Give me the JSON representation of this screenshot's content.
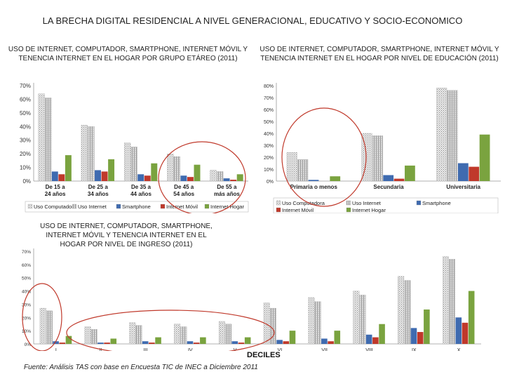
{
  "page_title": "LA BRECHA DIGITAL RESIDENCIAL A NIVEL GENERACIONAL, EDUCATIVO Y SOCIO-ECONOMICO",
  "source": "Fuente: Análisis TAS con base en Encuesta TIC de INEC a Diciembre 2011",
  "colors": {
    "computadora": "#d9d9d9",
    "internet": "#c8c8c8",
    "smartphone": "#3f6bb0",
    "internet_movil": "#c0392b",
    "internet_hogar": "#7aa33f",
    "highlight_circle": "#c0392b"
  },
  "chart_data": [
    {
      "id": "age",
      "type": "bar",
      "title": "USO DE INTERNET, COMPUTADOR, SMARTPHONE, INTERNET MÓVIL Y TENENCIA INTERNET EN EL HOGAR POR GRUPO ETÁREO (2011)",
      "categories": [
        "De 15 a 24 años",
        "De 25 a 34 años",
        "De 35 a 44 años",
        "De 45 a 54 años",
        "De 55 a más años"
      ],
      "yticks": [
        "0%",
        "10%",
        "20%",
        "30%",
        "40%",
        "50%",
        "60%",
        "70%"
      ],
      "ylim": [
        0,
        70
      ],
      "legend": [
        "Uso Computadora",
        "Uso Internet",
        "Smartphone",
        "Internet Móvil",
        "Internet Hogar"
      ],
      "series": [
        {
          "name": "Uso Computadora",
          "values": [
            64,
            41,
            28,
            20,
            8
          ]
        },
        {
          "name": "Uso Internet",
          "values": [
            61,
            40,
            25,
            18,
            7
          ]
        },
        {
          "name": "Smartphone",
          "values": [
            7,
            8,
            5,
            4,
            2
          ]
        },
        {
          "name": "Internet Móvil",
          "values": [
            5,
            7,
            4,
            3,
            1
          ]
        },
        {
          "name": "Internet Hogar",
          "values": [
            19,
            16,
            13,
            12,
            5
          ]
        }
      ]
    },
    {
      "id": "education",
      "type": "bar",
      "title": "USO DE INTERNET, COMPUTADOR, SMARTPHONE, INTERNET MÓVIL Y TENENCIA INTERNET EN EL HOGAR POR NIVEL DE EDUCACIÓN (2011)",
      "categories": [
        "Primaria o menos",
        "Secundaria",
        "Universitaria"
      ],
      "yticks": [
        "0%",
        "10%",
        "20%",
        "30%",
        "40%",
        "50%",
        "60%",
        "70%",
        "80%"
      ],
      "ylim": [
        0,
        80
      ],
      "legend": [
        "Uso Computadora",
        "Uso Internet",
        "Smartphone",
        "Internet Móvil",
        "Internet Hogar"
      ],
      "series": [
        {
          "name": "Uso Computadora",
          "values": [
            24,
            40,
            78
          ]
        },
        {
          "name": "Uso Internet",
          "values": [
            18,
            38,
            76
          ]
        },
        {
          "name": "Smartphone",
          "values": [
            1,
            5,
            15
          ]
        },
        {
          "name": "Internet Móvil",
          "values": [
            0,
            2,
            12
          ]
        },
        {
          "name": "Internet Hogar",
          "values": [
            4,
            13,
            39
          ]
        }
      ]
    },
    {
      "id": "income",
      "type": "bar",
      "title": "USO DE INTERNET, COMPUTADOR, SMARTPHONE, INTERNET MÓVIL Y TENENCIA INTERNET EN EL HOGAR POR NIVEL DE INGRESO (2011)",
      "categories": [
        "I",
        "II",
        "III",
        "IV",
        "V",
        "VI",
        "VII",
        "VIII",
        "IX",
        "X"
      ],
      "xlabel": "DECILES",
      "yticks": [
        "0%",
        "10%",
        "20%",
        "30%",
        "40%",
        "50%",
        "60%",
        "70%"
      ],
      "ylim": [
        0,
        70
      ],
      "series": [
        {
          "name": "Uso Computadora",
          "values": [
            27,
            13,
            16,
            15,
            17,
            31,
            35,
            40,
            51,
            66
          ]
        },
        {
          "name": "Uso Internet",
          "values": [
            25,
            11,
            14,
            13,
            15,
            27,
            32,
            37,
            48,
            64
          ]
        },
        {
          "name": "Smartphone",
          "values": [
            2,
            1,
            2,
            2,
            2,
            3,
            4,
            7,
            12,
            20
          ]
        },
        {
          "name": "Internet Móvil",
          "values": [
            1,
            1,
            1,
            1,
            1,
            2,
            2,
            5,
            9,
            16
          ]
        },
        {
          "name": "Internet Hogar",
          "values": [
            6,
            4,
            5,
            5,
            5,
            10,
            10,
            15,
            26,
            40
          ]
        }
      ]
    }
  ]
}
